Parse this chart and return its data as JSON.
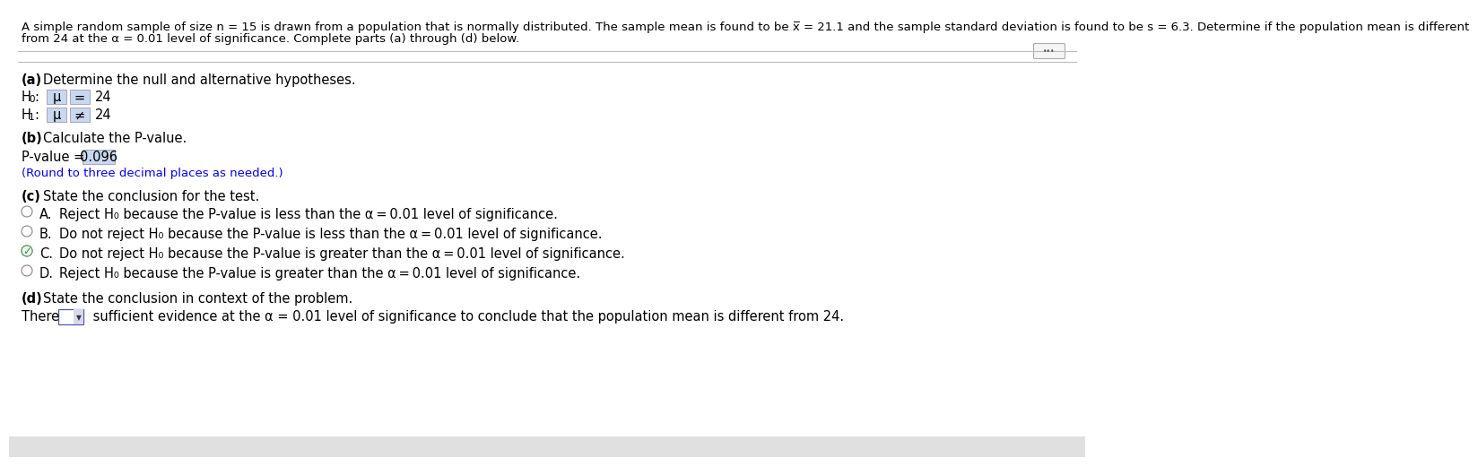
{
  "bg_color": "#ffffff",
  "text_color": "#000000",
  "highlight_color": "#c8d8f0",
  "blue_color": "#0000ff",
  "green_color": "#3a8a3a",
  "gray_color": "#888888",
  "title_line1": "A simple random sample of size n = 15 is drawn from a population that is normally distributed. The sample mean is found to be x̅ = 21.1 and the sample standard deviation is found to be s = 6.3. Determine if the population mean is different",
  "title_line2": "from 24 at the α = 0.01 level of significance. Complete parts (a) through (d) below.",
  "sep_color": "#bbbbbb",
  "part_a": "(a) Determine the null and alternative hypotheses.",
  "H0_pre": "H",
  "H0_sub": "0",
  "H0_post": ":",
  "H1_pre": "H",
  "H1_sub": "1",
  "H1_post": ":",
  "mu": "μ",
  "eq": "=",
  "neq": "≠",
  "val24": "24",
  "part_b": "(b) Calculate the P-value.",
  "pval_pre": "P-value = ",
  "pval": "0.096",
  "round_note": "(Round to three decimal places as needed.)",
  "part_c": "(c) State the conclusion for the test.",
  "optA": "Reject H",
  "optA2": "0",
  "optA3": " because the P-value is less than the α = 0.01 level of significance.",
  "optB": "Do not reject H",
  "optB2": "0",
  "optB3": " because the P-value is less than the α = 0.01 level of significance.",
  "optC": "Do not reject H",
  "optC2": "0",
  "optC3": " because the P-value is greater than the α = 0.01 level of significance.",
  "optD": "Reject H",
  "optD2": "0",
  "optD3": " because the P-value is greater than the α = 0.01 level of significance.",
  "part_d": "(d) State the conclusion in context of the problem.",
  "there": "There",
  "suff": " sufficient evidence at the α = 0.01 level of significance to conclude that the population mean is different from 24.",
  "font_size": 10.5,
  "font_size_small": 9.5
}
